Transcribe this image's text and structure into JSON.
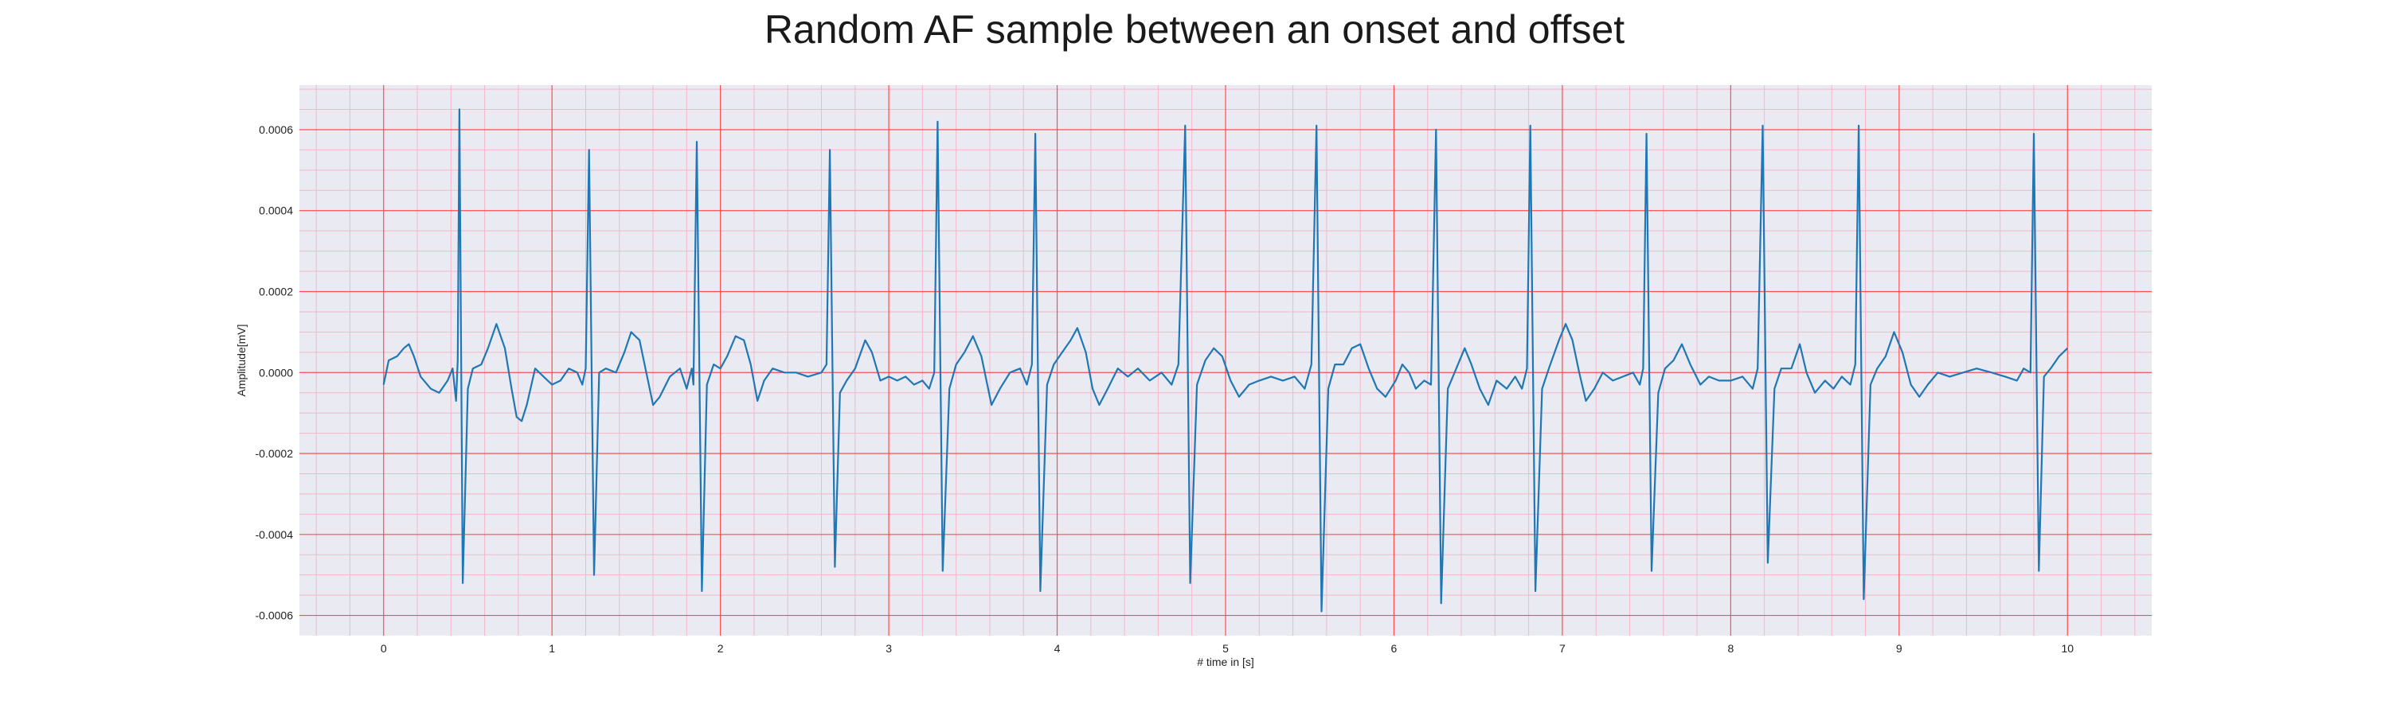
{
  "chart_data": {
    "type": "line",
    "title": "Random AF sample between an onset and offset",
    "xlabel": "# time in [s]",
    "ylabel": "Amplitude[mV]",
    "xlim": [
      -0.5,
      10.5
    ],
    "ylim": [
      -0.00065,
      0.00071
    ],
    "xticks": [
      0,
      1,
      2,
      3,
      4,
      5,
      6,
      7,
      8,
      9,
      10
    ],
    "xtick_labels": [
      "0",
      "1",
      "2",
      "3",
      "4",
      "5",
      "6",
      "7",
      "8",
      "9",
      "10"
    ],
    "yticks": [
      0.0006,
      0.0004,
      0.0002,
      0.0,
      -0.0002,
      -0.0004,
      -0.0006
    ],
    "ytick_labels": [
      "0.0006",
      "0.0004",
      "0.0002",
      "0.0000",
      "-0.0002",
      "-0.0004",
      "-0.0006"
    ],
    "grid": true,
    "minor_grid": true,
    "colors": {
      "line": "#1f77b4",
      "plot_background": "#eaeaf2",
      "major_grid": "#ff4d4d",
      "minor_grid": "#f4b7c9"
    },
    "series": [
      {
        "points": [
          [
            0.0,
            -3e-05
          ],
          [
            0.03,
            3e-05
          ],
          [
            0.08,
            4e-05
          ],
          [
            0.12,
            6e-05
          ],
          [
            0.15,
            7e-05
          ],
          [
            0.18,
            4e-05
          ],
          [
            0.22,
            -1e-05
          ],
          [
            0.28,
            -4e-05
          ],
          [
            0.33,
            -5e-05
          ],
          [
            0.38,
            -2e-05
          ],
          [
            0.41,
            1e-05
          ],
          [
            0.43,
            -7e-05
          ],
          [
            0.44,
            3e-05
          ],
          [
            0.45,
            0.00065
          ],
          [
            0.47,
            -0.00052
          ],
          [
            0.5,
            -4e-05
          ],
          [
            0.53,
            1e-05
          ],
          [
            0.58,
            2e-05
          ],
          [
            0.62,
            6e-05
          ],
          [
            0.67,
            0.00012
          ],
          [
            0.72,
            6e-05
          ],
          [
            0.76,
            -4e-05
          ],
          [
            0.79,
            -0.00011
          ],
          [
            0.82,
            -0.00012
          ],
          [
            0.85,
            -8e-05
          ],
          [
            0.9,
            1e-05
          ],
          [
            0.95,
            -1e-05
          ],
          [
            1.0,
            -3e-05
          ],
          [
            1.05,
            -2e-05
          ],
          [
            1.1,
            1e-05
          ],
          [
            1.15,
            0.0
          ],
          [
            1.18,
            -3e-05
          ],
          [
            1.2,
            1e-05
          ],
          [
            1.22,
            0.00055
          ],
          [
            1.25,
            -0.0005
          ],
          [
            1.28,
            0.0
          ],
          [
            1.32,
            1e-05
          ],
          [
            1.38,
            0.0
          ],
          [
            1.43,
            5e-05
          ],
          [
            1.47,
            0.0001
          ],
          [
            1.52,
            8e-05
          ],
          [
            1.56,
            0.0
          ],
          [
            1.6,
            -8e-05
          ],
          [
            1.64,
            -6e-05
          ],
          [
            1.7,
            -1e-05
          ],
          [
            1.76,
            1e-05
          ],
          [
            1.8,
            -4e-05
          ],
          [
            1.83,
            1e-05
          ],
          [
            1.84,
            -3e-05
          ],
          [
            1.86,
            0.00057
          ],
          [
            1.89,
            -0.00054
          ],
          [
            1.92,
            -3e-05
          ],
          [
            1.96,
            2e-05
          ],
          [
            2.0,
            1e-05
          ],
          [
            2.04,
            4e-05
          ],
          [
            2.09,
            9e-05
          ],
          [
            2.14,
            8e-05
          ],
          [
            2.18,
            2e-05
          ],
          [
            2.22,
            -7e-05
          ],
          [
            2.26,
            -2e-05
          ],
          [
            2.31,
            1e-05
          ],
          [
            2.38,
            0.0
          ],
          [
            2.45,
            0.0
          ],
          [
            2.52,
            -1e-05
          ],
          [
            2.6,
            0.0
          ],
          [
            2.63,
            2e-05
          ],
          [
            2.65,
            0.00055
          ],
          [
            2.68,
            -0.00048
          ],
          [
            2.71,
            -5e-05
          ],
          [
            2.75,
            -2e-05
          ],
          [
            2.8,
            1e-05
          ],
          [
            2.86,
            8e-05
          ],
          [
            2.9,
            5e-05
          ],
          [
            2.95,
            -2e-05
          ],
          [
            3.0,
            -1e-05
          ],
          [
            3.05,
            -2e-05
          ],
          [
            3.1,
            -1e-05
          ],
          [
            3.15,
            -3e-05
          ],
          [
            3.2,
            -2e-05
          ],
          [
            3.24,
            -4e-05
          ],
          [
            3.27,
            0.0
          ],
          [
            3.29,
            0.00062
          ],
          [
            3.32,
            -0.00049
          ],
          [
            3.36,
            -4e-05
          ],
          [
            3.4,
            2e-05
          ],
          [
            3.45,
            5e-05
          ],
          [
            3.5,
            9e-05
          ],
          [
            3.55,
            4e-05
          ],
          [
            3.61,
            -8e-05
          ],
          [
            3.66,
            -4e-05
          ],
          [
            3.72,
            0.0
          ],
          [
            3.78,
            1e-05
          ],
          [
            3.82,
            -3e-05
          ],
          [
            3.85,
            2e-05
          ],
          [
            3.87,
            0.00059
          ],
          [
            3.9,
            -0.00054
          ],
          [
            3.94,
            -3e-05
          ],
          [
            3.98,
            2e-05
          ],
          [
            4.03,
            5e-05
          ],
          [
            4.08,
            8e-05
          ],
          [
            4.12,
            0.00011
          ],
          [
            4.17,
            5e-05
          ],
          [
            4.21,
            -4e-05
          ],
          [
            4.25,
            -8e-05
          ],
          [
            4.3,
            -4e-05
          ],
          [
            4.36,
            1e-05
          ],
          [
            4.42,
            -1e-05
          ],
          [
            4.48,
            1e-05
          ],
          [
            4.55,
            -2e-05
          ],
          [
            4.62,
            0.0
          ],
          [
            4.68,
            -3e-05
          ],
          [
            4.72,
            2e-05
          ],
          [
            4.76,
            0.00061
          ],
          [
            4.79,
            -0.00052
          ],
          [
            4.83,
            -3e-05
          ],
          [
            4.88,
            3e-05
          ],
          [
            4.93,
            6e-05
          ],
          [
            4.98,
            4e-05
          ],
          [
            5.03,
            -2e-05
          ],
          [
            5.08,
            -6e-05
          ],
          [
            5.14,
            -3e-05
          ],
          [
            5.2,
            -2e-05
          ],
          [
            5.27,
            -1e-05
          ],
          [
            5.34,
            -2e-05
          ],
          [
            5.41,
            -1e-05
          ],
          [
            5.47,
            -4e-05
          ],
          [
            5.51,
            2e-05
          ],
          [
            5.54,
            0.00061
          ],
          [
            5.57,
            -0.00059
          ],
          [
            5.61,
            -4e-05
          ],
          [
            5.65,
            2e-05
          ],
          [
            5.7,
            2e-05
          ],
          [
            5.75,
            6e-05
          ],
          [
            5.8,
            7e-05
          ],
          [
            5.85,
            1e-05
          ],
          [
            5.9,
            -4e-05
          ],
          [
            5.95,
            -6e-05
          ],
          [
            6.01,
            -2e-05
          ],
          [
            6.05,
            2e-05
          ],
          [
            6.09,
            0.0
          ],
          [
            6.13,
            -4e-05
          ],
          [
            6.18,
            -2e-05
          ],
          [
            6.22,
            -3e-05
          ],
          [
            6.25,
            0.0006
          ],
          [
            6.28,
            -0.00057
          ],
          [
            6.32,
            -4e-05
          ],
          [
            6.36,
            0.0
          ],
          [
            6.42,
            6e-05
          ],
          [
            6.46,
            2e-05
          ],
          [
            6.51,
            -4e-05
          ],
          [
            6.56,
            -8e-05
          ],
          [
            6.61,
            -2e-05
          ],
          [
            6.67,
            -4e-05
          ],
          [
            6.72,
            -1e-05
          ],
          [
            6.76,
            -4e-05
          ],
          [
            6.79,
            1e-05
          ],
          [
            6.81,
            0.00061
          ],
          [
            6.84,
            -0.00054
          ],
          [
            6.88,
            -4e-05
          ],
          [
            6.92,
            1e-05
          ],
          [
            6.98,
            8e-05
          ],
          [
            7.02,
            0.00012
          ],
          [
            7.06,
            8e-05
          ],
          [
            7.1,
            0.0
          ],
          [
            7.14,
            -7e-05
          ],
          [
            7.19,
            -4e-05
          ],
          [
            7.24,
            0.0
          ],
          [
            7.3,
            -2e-05
          ],
          [
            7.36,
            -1e-05
          ],
          [
            7.42,
            0.0
          ],
          [
            7.46,
            -3e-05
          ],
          [
            7.48,
            1e-05
          ],
          [
            7.5,
            0.00059
          ],
          [
            7.53,
            -0.00049
          ],
          [
            7.57,
            -5e-05
          ],
          [
            7.61,
            1e-05
          ],
          [
            7.66,
            3e-05
          ],
          [
            7.71,
            7e-05
          ],
          [
            7.76,
            2e-05
          ],
          [
            7.82,
            -3e-05
          ],
          [
            7.87,
            -1e-05
          ],
          [
            7.93,
            -2e-05
          ],
          [
            8.0,
            -2e-05
          ],
          [
            8.07,
            -1e-05
          ],
          [
            8.13,
            -4e-05
          ],
          [
            8.16,
            1e-05
          ],
          [
            8.19,
            0.00061
          ],
          [
            8.22,
            -0.00047
          ],
          [
            8.26,
            -4e-05
          ],
          [
            8.3,
            1e-05
          ],
          [
            8.36,
            1e-05
          ],
          [
            8.41,
            7e-05
          ],
          [
            8.45,
            0.0
          ],
          [
            8.5,
            -5e-05
          ],
          [
            8.56,
            -2e-05
          ],
          [
            8.61,
            -4e-05
          ],
          [
            8.66,
            -1e-05
          ],
          [
            8.71,
            -3e-05
          ],
          [
            8.74,
            2e-05
          ],
          [
            8.76,
            0.00061
          ],
          [
            8.79,
            -0.00056
          ],
          [
            8.83,
            -3e-05
          ],
          [
            8.87,
            1e-05
          ],
          [
            8.92,
            4e-05
          ],
          [
            8.97,
            0.0001
          ],
          [
            9.02,
            5e-05
          ],
          [
            9.07,
            -3e-05
          ],
          [
            9.12,
            -6e-05
          ],
          [
            9.17,
            -3e-05
          ],
          [
            9.23,
            0.0
          ],
          [
            9.3,
            -1e-05
          ],
          [
            9.38,
            0.0
          ],
          [
            9.46,
            1e-05
          ],
          [
            9.55,
            0.0
          ],
          [
            9.63,
            -1e-05
          ],
          [
            9.7,
            -2e-05
          ],
          [
            9.74,
            1e-05
          ],
          [
            9.78,
            0.0
          ],
          [
            9.8,
            0.00059
          ],
          [
            9.83,
            -0.00049
          ],
          [
            9.86,
            -1e-05
          ],
          [
            9.9,
            1e-05
          ],
          [
            9.95,
            4e-05
          ],
          [
            10.0,
            6e-05
          ]
        ]
      }
    ]
  }
}
